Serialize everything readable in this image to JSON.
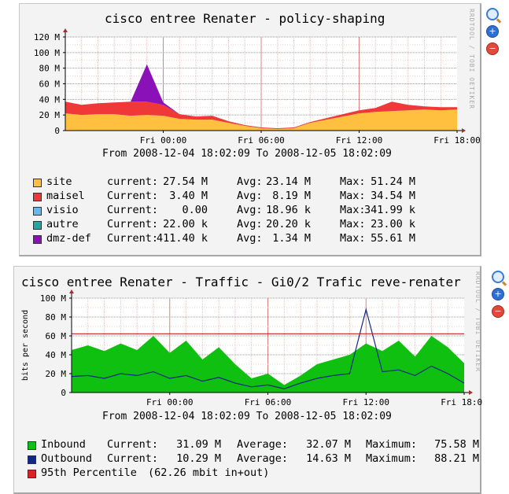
{
  "graph1": {
    "title": "cisco entree Renater - policy-shaping",
    "stamp": "RRDTOOL / TOBI OETIKER",
    "from_to": "From 2008-12-04 18:02:09 To 2008-12-05 18:02:09",
    "legend": [
      {
        "name": "site",
        "c_label": "current:",
        "c_val": "27.54 M",
        "a_label": "Avg:",
        "a_val": "23.14 M",
        "m_label": "Max:",
        "m_val": "51.24 M",
        "color": "#ffc040"
      },
      {
        "name": "maisel",
        "c_label": "Current:",
        "c_val": "3.40 M",
        "a_label": "Avg:",
        "a_val": "8.19 M",
        "m_label": "Max:",
        "m_val": "34.54 M",
        "color": "#f03838"
      },
      {
        "name": "visio",
        "c_label": "Current:",
        "c_val": "0.00",
        "a_label": "Avg:",
        "a_val": "18.96 k",
        "m_label": "Max:",
        "m_val": "341.99 k",
        "color": "#66b8ee"
      },
      {
        "name": "autre",
        "c_label": "Current:",
        "c_val": "22.00 k",
        "a_label": "Avg:",
        "a_val": "20.20 k",
        "m_label": "Max:",
        "m_val": "23.00 k",
        "color": "#22a8a0"
      },
      {
        "name": "dmz-def",
        "c_label": "Current:",
        "c_val": "411.40 k",
        "a_label": "Avg:",
        "a_val": "1.34 M",
        "m_label": "Max:",
        "m_val": "55.61 M",
        "color": "#8a10b8"
      }
    ]
  },
  "graph2": {
    "title": "cisco entree Renater - Traffic - Gi0/2 Trafic reve-renater",
    "stamp": "RRDTOOL / TOBI OETIKER",
    "from_to": "From 2008-12-04 18:02:09 To 2008-12-05 18:02:09",
    "legend": [
      {
        "name": "Inbound",
        "c_label": "Current:",
        "c_val": "31.09 M",
        "a_label": "Average:",
        "a_val": "32.07 M",
        "m_label": "Maximum:",
        "m_val": "75.58 M",
        "color": "#10c010"
      },
      {
        "name": "Outbound",
        "c_label": "Current:",
        "c_val": "10.29 M",
        "a_label": "Average:",
        "a_val": "14.63 M",
        "m_label": "Maximum:",
        "m_val": "88.21 M",
        "color": "#102880"
      }
    ],
    "percentile": {
      "name": "95th Percentile",
      "detail": "(62.26 mbit in+out)",
      "color": "#e02020"
    }
  },
  "chart_data": [
    {
      "type": "area",
      "title": "cisco entree Renater - policy-shaping",
      "xlabel": "",
      "ylabel": "",
      "x_ticks": [
        "Fri 00:00",
        "Fri 06:00",
        "Fri 12:00",
        "Fri 18:00"
      ],
      "y_ticks": [
        "0",
        "20 M",
        "40 M",
        "60 M",
        "80 M",
        "100 M",
        "120 M"
      ],
      "ylim": [
        0,
        120
      ],
      "x_range_hours": [
        0,
        24
      ],
      "grid": true,
      "stacked": true,
      "series": [
        {
          "name": "site",
          "color": "#ffc040",
          "x": [
            0,
            1,
            2,
            3,
            4,
            5,
            6,
            7,
            8,
            9,
            10,
            11,
            12,
            13,
            14,
            15,
            16,
            17,
            18,
            19,
            20,
            21,
            22,
            23,
            24
          ],
          "values": [
            22,
            20,
            21,
            21,
            19,
            20,
            19,
            15,
            14,
            14,
            10,
            6,
            3,
            2,
            3,
            10,
            14,
            18,
            22,
            24,
            25,
            26,
            27,
            26,
            27
          ]
        },
        {
          "name": "maisel",
          "color": "#f03838",
          "x": [
            0,
            1,
            2,
            3,
            4,
            5,
            6,
            7,
            8,
            9,
            10,
            11,
            12,
            13,
            14,
            15,
            16,
            17,
            18,
            19,
            20,
            21,
            22,
            23,
            24
          ],
          "values": [
            15,
            13,
            14,
            15,
            18,
            17,
            14,
            6,
            4,
            5,
            2,
            1,
            1,
            1,
            1,
            1,
            2,
            3,
            4,
            5,
            12,
            7,
            4,
            4,
            3
          ]
        },
        {
          "name": "dmz-def",
          "color": "#8a10b8",
          "x": [
            0,
            1,
            2,
            3,
            4,
            5,
            6,
            7,
            8,
            9,
            10,
            11,
            12,
            13,
            14,
            15,
            16,
            17,
            18,
            19,
            20,
            21,
            22,
            23,
            24
          ],
          "values": [
            0,
            0,
            0,
            0,
            0,
            48,
            3,
            0,
            0,
            0,
            0,
            0,
            0,
            0,
            0,
            0,
            0,
            0,
            0,
            0,
            0,
            0,
            0,
            0,
            0
          ]
        }
      ]
    },
    {
      "type": "area",
      "title": "cisco entree Renater - Traffic - Gi0/2 Trafic reve-renater",
      "xlabel": "",
      "ylabel": "bits per second",
      "x_ticks": [
        "Fri 00:00",
        "Fri 06:00",
        "Fri 12:00",
        "Fri 18:00"
      ],
      "y_ticks": [
        "0",
        "20 M",
        "40 M",
        "60 M",
        "80 M",
        "100 M"
      ],
      "ylim": [
        0,
        100
      ],
      "x_range_hours": [
        0,
        24
      ],
      "grid": true,
      "series": [
        {
          "name": "Inbound",
          "color": "#10c010",
          "x": [
            0,
            1,
            2,
            3,
            4,
            5,
            6,
            7,
            8,
            9,
            10,
            11,
            12,
            13,
            14,
            15,
            16,
            17,
            18,
            19,
            20,
            21,
            22,
            23,
            24
          ],
          "values": [
            45,
            50,
            44,
            52,
            45,
            60,
            42,
            55,
            35,
            48,
            30,
            15,
            20,
            8,
            18,
            30,
            35,
            40,
            52,
            44,
            55,
            38,
            60,
            48,
            31
          ]
        },
        {
          "name": "Outbound",
          "color": "#102880",
          "x": [
            0,
            1,
            2,
            3,
            4,
            5,
            6,
            7,
            8,
            9,
            10,
            11,
            12,
            13,
            14,
            15,
            16,
            17,
            18,
            19,
            20,
            21,
            22,
            23,
            24
          ],
          "values": [
            17,
            18,
            15,
            20,
            18,
            22,
            15,
            18,
            12,
            16,
            10,
            6,
            8,
            4,
            10,
            15,
            18,
            20,
            88,
            22,
            24,
            18,
            28,
            20,
            10
          ]
        }
      ],
      "percentile_line": 62.26
    }
  ]
}
